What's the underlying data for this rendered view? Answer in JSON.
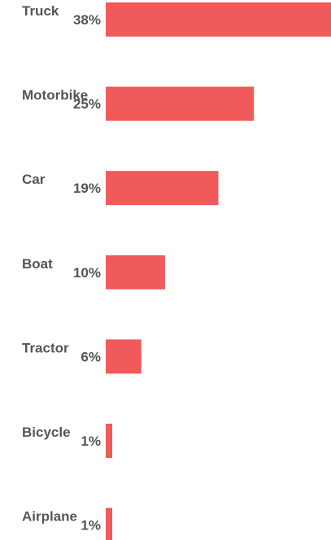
{
  "chart_data": {
    "type": "bar",
    "orientation": "horizontal",
    "categories": [
      "Truck",
      "Motorbike",
      "Car",
      "Boat",
      "Tractor",
      "Bicycle",
      "Airplane"
    ],
    "values": [
      38,
      25,
      19,
      10,
      6,
      1,
      1
    ],
    "value_labels": [
      "38%",
      "25%",
      "19%",
      "10%",
      "6%",
      "1%",
      "1%"
    ],
    "xlim": [
      0,
      38
    ],
    "grid": false,
    "bar_color": "#f05a5b",
    "label_color": "#555555"
  }
}
